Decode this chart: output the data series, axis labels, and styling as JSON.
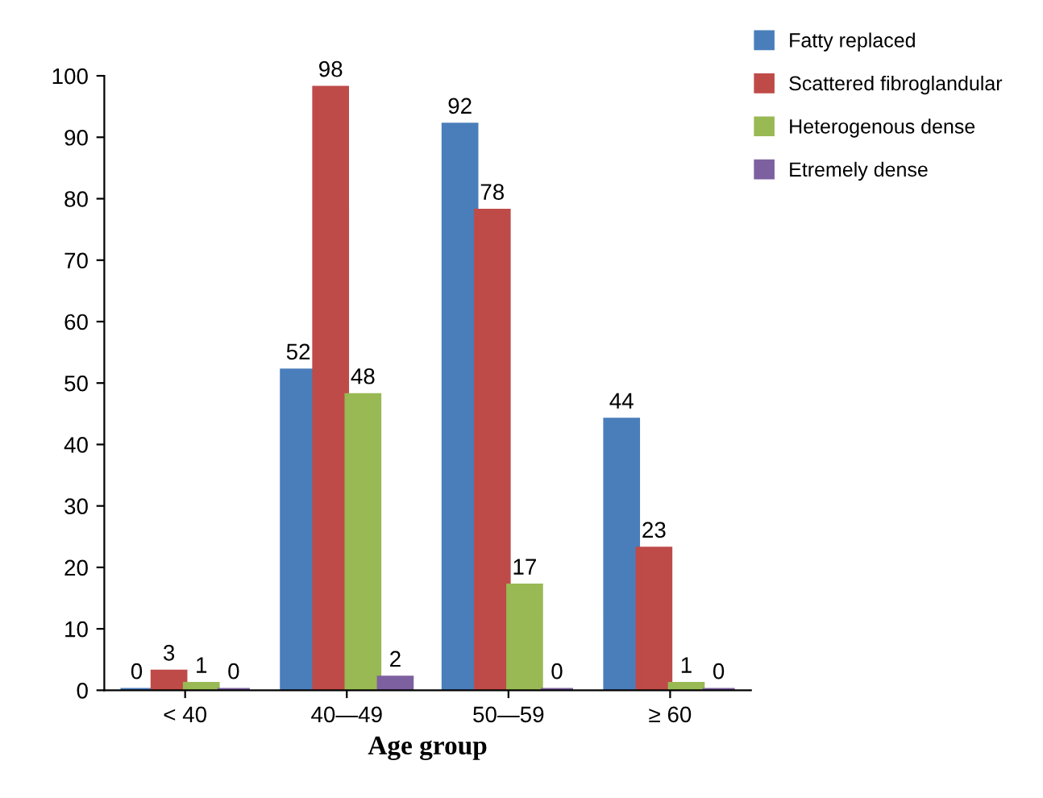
{
  "chart_data": {
    "type": "bar",
    "xlabel": "Age group",
    "categories": [
      "< 40",
      "40—49",
      "50—59",
      "≥ 60"
    ],
    "series": [
      {
        "name": "Fatty replaced",
        "color": "#4a7ebb",
        "values": [
          0,
          52,
          92,
          44
        ]
      },
      {
        "name": "Scattered fibroglandular",
        "color": "#be4b48",
        "values": [
          3,
          98,
          78,
          23
        ]
      },
      {
        "name": "Heterogenous dense",
        "color": "#98b954",
        "values": [
          1,
          48,
          17,
          1
        ]
      },
      {
        "name": "Etremely dense",
        "color": "#7d60a0",
        "values": [
          0,
          2,
          0,
          0
        ]
      }
    ],
    "ylim": [
      0,
      100
    ],
    "yticks": [
      0,
      10,
      20,
      30,
      40,
      50,
      60,
      70,
      80,
      90,
      100
    ],
    "grid": false,
    "legend": "top right",
    "data_labels": true
  }
}
